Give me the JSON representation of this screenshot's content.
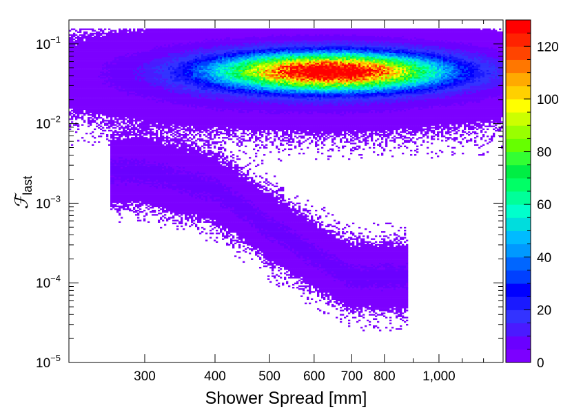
{
  "chart_data": {
    "type": "heatmap",
    "title": "",
    "xlabel": "Shower Spread [mm]",
    "ylabel": {
      "symbol": "ℱ",
      "subscript": "last"
    },
    "x_scale": "log",
    "y_scale": "log",
    "xlim": [
      220,
      1300
    ],
    "ylim": [
      1e-05,
      0.2
    ],
    "x_ticks": [
      {
        "value": 300,
        "label": "300"
      },
      {
        "value": 400,
        "label": "400"
      },
      {
        "value": 500,
        "label": "500"
      },
      {
        "value": 600,
        "label": "600"
      },
      {
        "value": 700,
        "label": "700"
      },
      {
        "value": 800,
        "label": "800"
      },
      {
        "value": 1000,
        "label": "1,000"
      }
    ],
    "y_ticks": [
      {
        "value": 0.1,
        "mantissa": "10",
        "exponent": "−1"
      },
      {
        "value": 0.01,
        "mantissa": "10",
        "exponent": "−2"
      },
      {
        "value": 0.001,
        "mantissa": "10",
        "exponent": "−3"
      },
      {
        "value": 0.0001,
        "mantissa": "10",
        "exponent": "−4"
      },
      {
        "value": 1e-05,
        "mantissa": "10",
        "exponent": "−5"
      }
    ],
    "grid": false,
    "colorbar": {
      "min": 0,
      "max": 130,
      "ticks": [
        0,
        20,
        40,
        60,
        80,
        100,
        120
      ],
      "tick_labels": [
        "0",
        "20",
        "40",
        "60",
        "80",
        "100",
        "120"
      ],
      "colors": [
        "#7c00ff",
        "#6a00ff",
        "#4a1aff",
        "#3333ff",
        "#1a1aff",
        "#0000ff",
        "#0040ff",
        "#0066ff",
        "#0099ff",
        "#00bbff",
        "#00dddd",
        "#00ffcc",
        "#00ff99",
        "#00ff66",
        "#00ee44",
        "#33ff33",
        "#66ff00",
        "#99ff00",
        "#ccff00",
        "#ffff00",
        "#ffd000",
        "#ffaa00",
        "#ff7700",
        "#ff4400",
        "#ff2200",
        "#ff0000"
      ]
    },
    "density_components": [
      {
        "name": "core",
        "center": [
          640,
          0.045
        ],
        "log_sigma": [
          0.13,
          0.15
        ],
        "peak": 130
      },
      {
        "name": "halo",
        "center": [
          600,
          0.04
        ],
        "log_sigma": [
          0.24,
          0.32
        ],
        "peak": 14
      },
      {
        "name": "tail",
        "path": [
          [
            300,
            0.0025
          ],
          [
            400,
            0.0015
          ],
          [
            500,
            0.0005
          ],
          [
            600,
            0.00022
          ],
          [
            700,
            0.00012
          ]
        ],
        "peak": 6
      }
    ]
  }
}
